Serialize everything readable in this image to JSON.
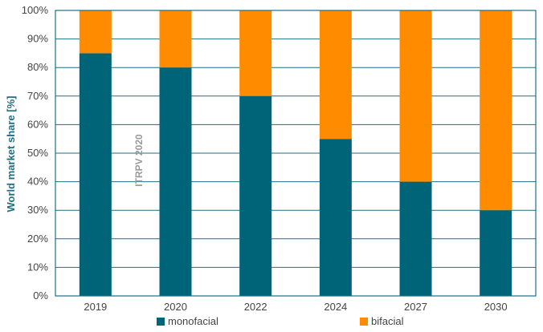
{
  "chart_data": {
    "type": "bar",
    "stacked": true,
    "categories": [
      "2019",
      "2020",
      "2022",
      "2024",
      "2027",
      "2030"
    ],
    "series": [
      {
        "name": "monofacial",
        "values": [
          85,
          80,
          70,
          55,
          40,
          30
        ],
        "color": "#006478"
      },
      {
        "name": "bifacial",
        "values": [
          15,
          20,
          30,
          45,
          60,
          70
        ],
        "color": "#ff8c00"
      }
    ],
    "ylabel": "World market share [%]",
    "ylim": [
      0,
      100
    ],
    "yticks": [
      "0%",
      "10%",
      "20%",
      "30%",
      "40%",
      "50%",
      "60%",
      "70%",
      "80%",
      "90%",
      "100%"
    ],
    "grid": true,
    "legend": "bottom",
    "annotation": "ITRPV 2020",
    "colors": {
      "axis": "#1d6f86",
      "grid": "#1d6f86"
    }
  }
}
